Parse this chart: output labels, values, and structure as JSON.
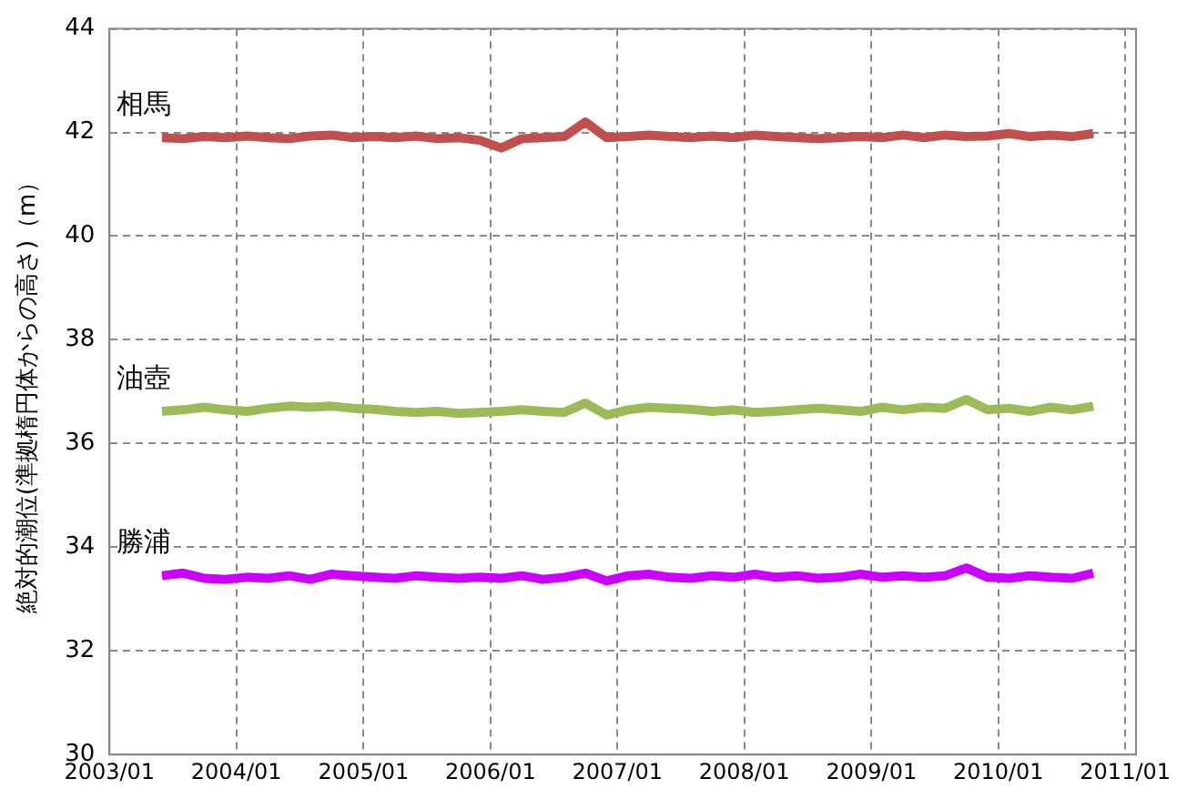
{
  "chart_data": {
    "type": "line",
    "ylabel": "絶対的潮位(準拠楕円体からの高さ)（m）",
    "x": [
      "2003-06",
      "2003-08",
      "2003-10",
      "2003-12",
      "2004-02",
      "2004-04",
      "2004-06",
      "2004-08",
      "2004-10",
      "2004-12",
      "2005-02",
      "2005-04",
      "2005-06",
      "2005-08",
      "2005-10",
      "2005-12",
      "2006-02",
      "2006-04",
      "2006-06",
      "2006-08",
      "2006-10",
      "2006-12",
      "2007-02",
      "2007-04",
      "2007-06",
      "2007-08",
      "2007-10",
      "2007-12",
      "2008-02",
      "2008-04",
      "2008-06",
      "2008-08",
      "2008-10",
      "2008-12",
      "2009-02",
      "2009-04",
      "2009-06",
      "2009-08",
      "2009-10",
      "2009-12",
      "2010-02",
      "2010-04",
      "2010-06",
      "2010-08",
      "2010-10"
    ],
    "series": [
      {
        "name": "相馬",
        "color": "#c0504d",
        "values": [
          41.9,
          41.88,
          41.92,
          41.9,
          41.93,
          41.9,
          41.88,
          41.93,
          41.95,
          41.9,
          41.92,
          41.9,
          41.93,
          41.88,
          41.9,
          41.85,
          41.7,
          41.88,
          41.9,
          41.92,
          42.2,
          41.9,
          41.92,
          41.95,
          41.92,
          41.9,
          41.93,
          41.9,
          41.95,
          41.92,
          41.9,
          41.88,
          41.9,
          41.92,
          41.9,
          41.95,
          41.9,
          41.95,
          41.92,
          41.93,
          41.98,
          41.92,
          41.95,
          41.92,
          41.98
        ]
      },
      {
        "name": "油壺",
        "color": "#9bbb59",
        "values": [
          36.62,
          36.65,
          36.7,
          36.65,
          36.62,
          36.68,
          36.72,
          36.7,
          36.72,
          36.68,
          36.66,
          36.62,
          36.6,
          36.62,
          36.58,
          36.6,
          36.62,
          36.65,
          36.62,
          36.6,
          36.78,
          36.55,
          36.65,
          36.7,
          36.68,
          36.66,
          36.62,
          36.65,
          36.6,
          36.62,
          36.65,
          36.68,
          36.65,
          36.62,
          36.7,
          36.65,
          36.7,
          36.68,
          36.85,
          36.65,
          36.68,
          36.62,
          36.7,
          36.65,
          36.72
        ]
      },
      {
        "name": "勝浦",
        "color": "#cc00ff",
        "values": [
          33.45,
          33.5,
          33.4,
          33.38,
          33.42,
          33.4,
          33.45,
          33.38,
          33.48,
          33.45,
          33.42,
          33.4,
          33.45,
          33.42,
          33.4,
          33.42,
          33.4,
          33.45,
          33.38,
          33.42,
          33.5,
          33.35,
          33.45,
          33.48,
          33.42,
          33.4,
          33.45,
          33.42,
          33.48,
          33.42,
          33.45,
          33.4,
          33.42,
          33.48,
          33.42,
          33.45,
          33.42,
          33.45,
          33.6,
          33.42,
          33.4,
          33.45,
          33.42,
          33.4,
          33.5
        ]
      }
    ],
    "xlim": [
      "2003-01",
      "2011-02"
    ],
    "xticks": [
      {
        "value": "2003-01",
        "label": "2003/01"
      },
      {
        "value": "2004-01",
        "label": "2004/01"
      },
      {
        "value": "2005-01",
        "label": "2005/01"
      },
      {
        "value": "2006-01",
        "label": "2006/01"
      },
      {
        "value": "2007-01",
        "label": "2007/01"
      },
      {
        "value": "2008-01",
        "label": "2008/01"
      },
      {
        "value": "2009-01",
        "label": "2009/01"
      },
      {
        "value": "2010-01",
        "label": "2010/01"
      },
      {
        "value": "2011-01",
        "label": "2011/01"
      }
    ],
    "ylim": [
      30,
      44
    ],
    "yticks": [
      30,
      32,
      34,
      36,
      38,
      40,
      42,
      44
    ],
    "grid": true,
    "legend": false
  }
}
